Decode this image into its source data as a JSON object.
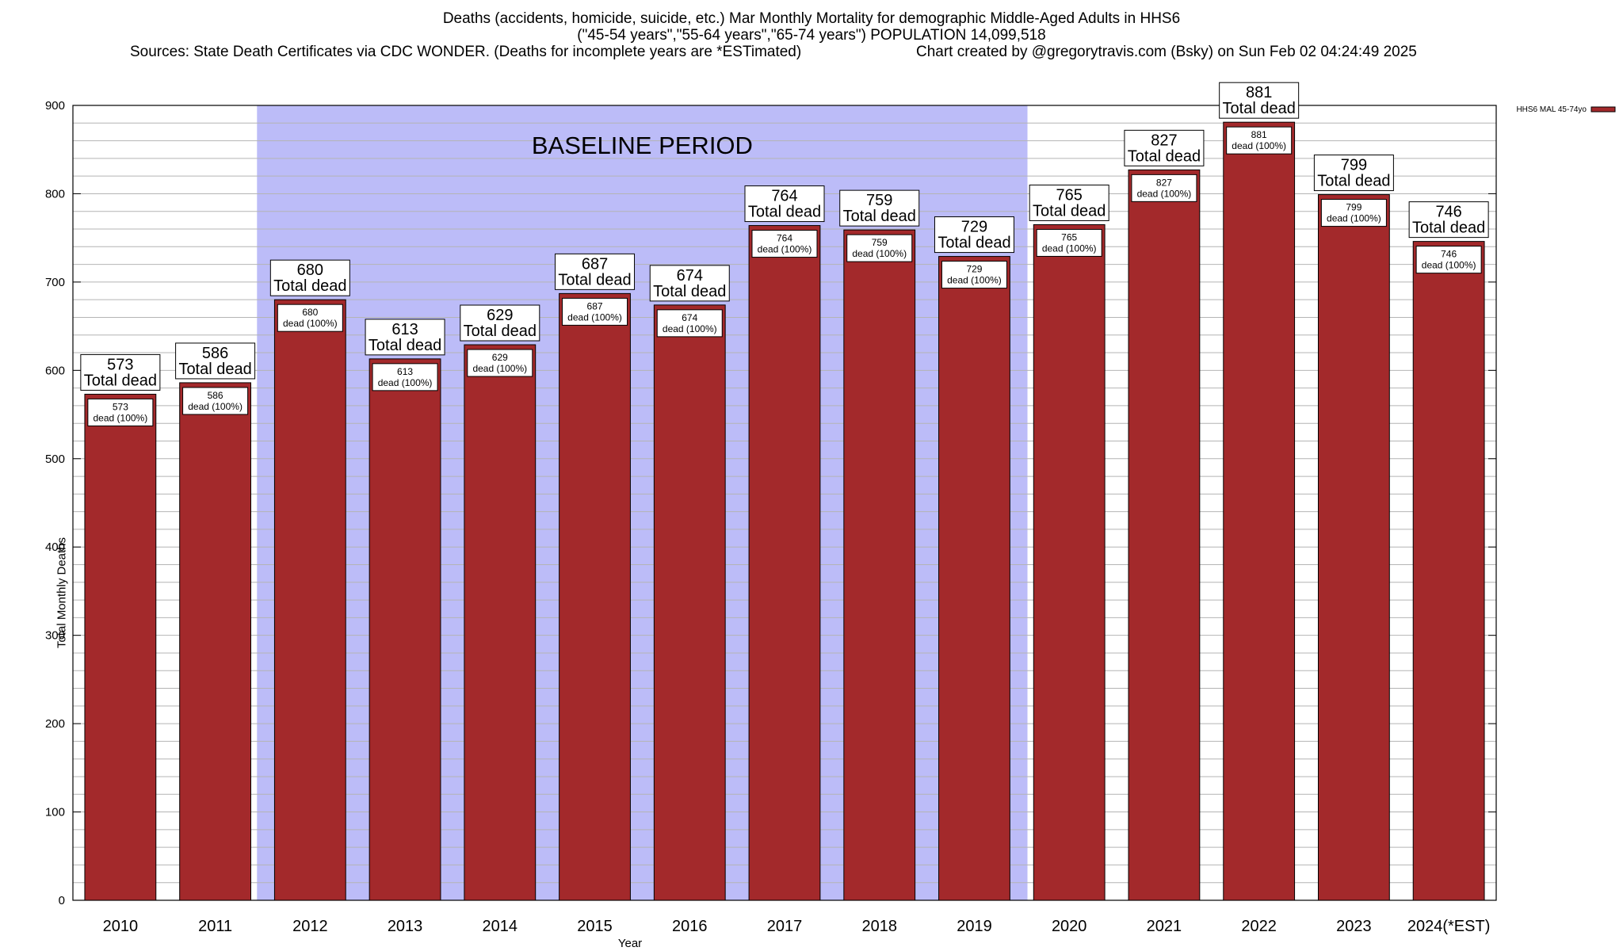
{
  "header": {
    "line1": "Deaths (accidents, homicide, suicide, etc.) Mar Monthly Mortality for demographic Middle-Aged Adults in HHS6",
    "line2": "(\"45-54 years\",\"55-64 years\",\"65-74 years\") POPULATION 14,099,518",
    "line3_left": "Sources: State Death Certificates via CDC WONDER. (Deaths for incomplete years are *ESTimated)",
    "line3_right": "Chart created by @gregorytravis.com (Bsky) on Sun Feb 02 04:24:49 2025"
  },
  "chart_data": {
    "type": "bar",
    "xlabel": "Year",
    "ylabel": "Total Monthly Deaths",
    "ylim": [
      0,
      900
    ],
    "yticks": [
      0,
      100,
      200,
      300,
      400,
      500,
      600,
      700,
      800,
      900
    ],
    "grid": true,
    "legend": {
      "placement": "top-right",
      "entries": [
        "HHS6 MAL 45-74yo"
      ]
    },
    "categories": [
      "2010",
      "2011",
      "2012",
      "2013",
      "2014",
      "2015",
      "2016",
      "2017",
      "2018",
      "2019",
      "2020",
      "2021",
      "2022",
      "2023",
      "2024(*EST)"
    ],
    "series": [
      {
        "name": "HHS6 MAL 45-74yo",
        "values": [
          573,
          586,
          680,
          613,
          629,
          687,
          674,
          764,
          759,
          729,
          765,
          827,
          881,
          799,
          746
        ]
      }
    ],
    "total_label_suffix": "Total dead",
    "inner_label_suffix": "dead (100%)",
    "annotations": [
      {
        "text": "BASELINE PERIOD",
        "x_start": "2012",
        "x_end": "2019"
      }
    ]
  },
  "colors": {
    "bar_fill": "#a3292b",
    "baseline_fill": "#bcbcf8",
    "grid": "#b4b4b4",
    "axis": "#000000"
  }
}
